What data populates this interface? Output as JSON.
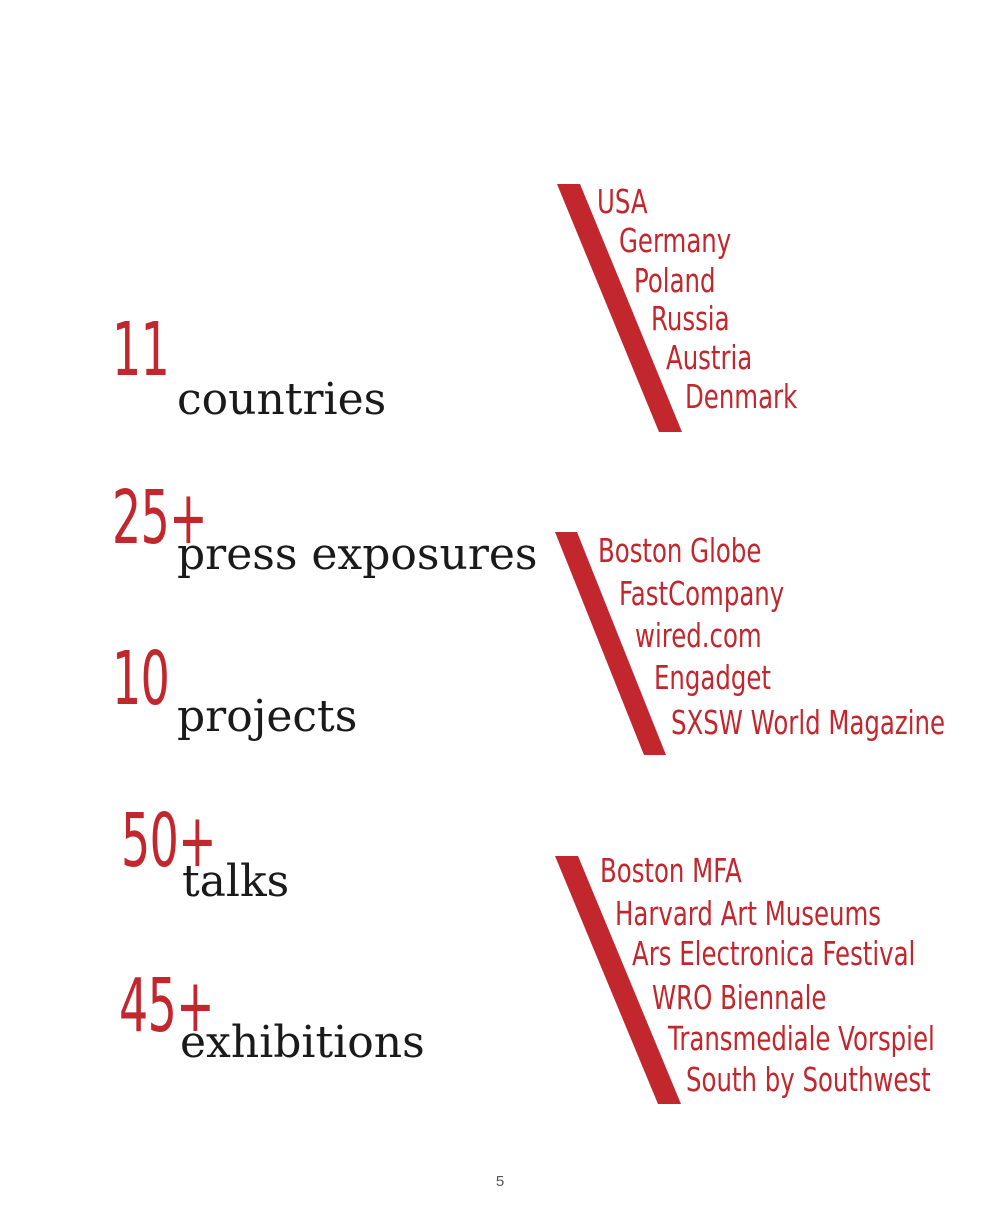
{
  "stats": [
    {
      "number": "11",
      "label": "countries"
    },
    {
      "number": "25+",
      "label": "press exposures"
    },
    {
      "number": "10",
      "label": "projects"
    },
    {
      "number": "50+",
      "label": "talks"
    },
    {
      "number": "45+",
      "label": "exhibitions"
    }
  ],
  "lists": {
    "countries": [
      "USA",
      "Germany",
      "Poland",
      "Russia",
      "Austria",
      "Denmark"
    ],
    "press": [
      "Boston Globe",
      "FastCompany",
      "wired.com",
      "Engadget",
      "SXSW World Magazine"
    ],
    "venues": [
      "Boston MFA",
      "Harvard Art Museums",
      "Ars Electronica Festival",
      "WRO Biennale",
      "Transmediale Vorspiel",
      "South by Southwest"
    ]
  },
  "page_number": "5",
  "colors": {
    "accent": "#c1272d",
    "text": "#1a1a1a"
  }
}
